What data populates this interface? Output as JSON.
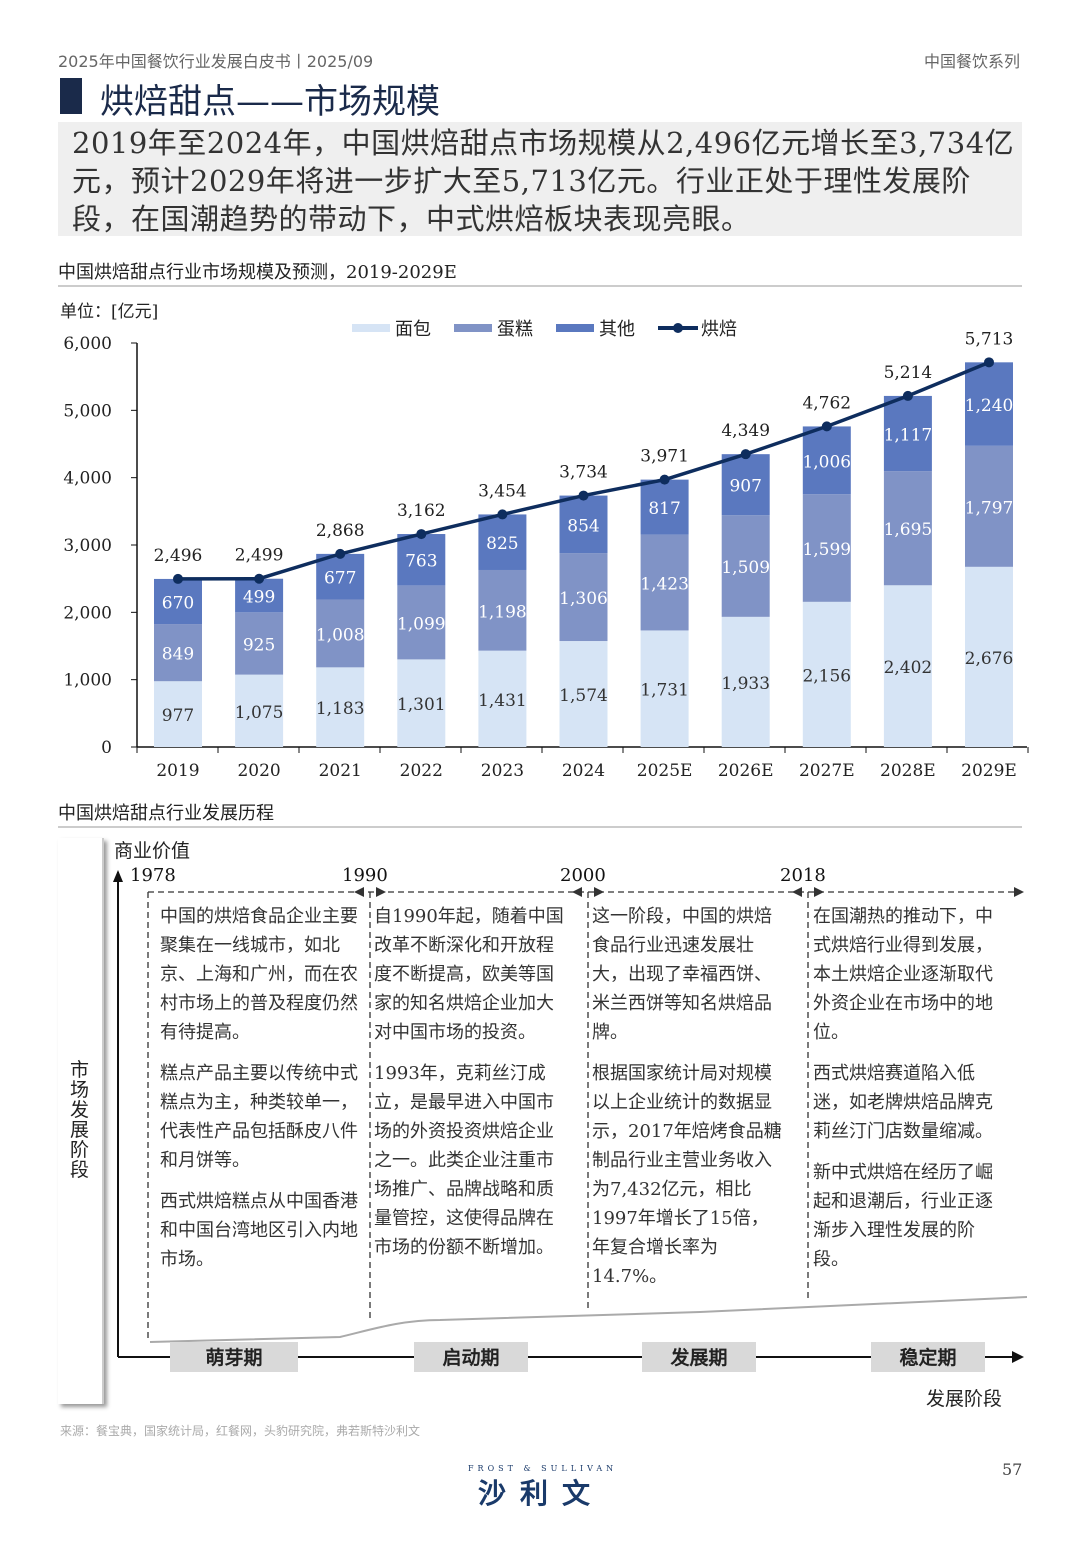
{
  "header": {
    "left": "2025年中国餐饮行业发展白皮书丨2025/09",
    "right": "中国餐饮系列"
  },
  "title": "烘焙甜点——市场规模",
  "summary": "2019年至2024年，中国烘焙甜点市场规模从2,496亿元增长至3,734亿元，预计2029年将进一步扩大至5,713亿元。行业正处于理性发展阶段，在国潮趋势的带动下，中式烘焙板块表现亮眼。",
  "chart_section_title": "中国烘焙甜点行业市场规模及预测，2019-2029E",
  "chart_data": {
    "type": "bar",
    "stacked": true,
    "unit_label": "单位：[亿元]",
    "categories": [
      "2019",
      "2020",
      "2021",
      "2022",
      "2023",
      "2024",
      "2025E",
      "2026E",
      "2027E",
      "2028E",
      "2029E"
    ],
    "yticks": [
      "0",
      "1,000",
      "2,000",
      "3,000",
      "4,000",
      "5,000",
      "6,000"
    ],
    "ylim": [
      0,
      6000
    ],
    "legend_position": "top",
    "series": [
      {
        "name": "面包",
        "color": "#d6e4f5",
        "values": [
          977,
          1075,
          1183,
          1301,
          1431,
          1574,
          1731,
          1933,
          2156,
          2402,
          2676
        ],
        "labels": [
          "977",
          "1,075",
          "1,183",
          "1,301",
          "1,431",
          "1,574",
          "1,731",
          "1,933",
          "2,156",
          "2,402",
          "2,676"
        ]
      },
      {
        "name": "蛋糕",
        "color": "#8093c6",
        "values": [
          849,
          925,
          1008,
          1099,
          1198,
          1306,
          1423,
          1509,
          1599,
          1695,
          1797
        ],
        "labels": [
          "849",
          "925",
          "1,008",
          "1,099",
          "1,198",
          "1,306",
          "1,423",
          "1,509",
          "1,599",
          "1,695",
          "1,797"
        ]
      },
      {
        "name": "其他",
        "color": "#5a78bf",
        "values": [
          670,
          499,
          677,
          763,
          825,
          854,
          817,
          907,
          1006,
          1117,
          1240
        ],
        "labels": [
          "670",
          "499",
          "677",
          "763",
          "825",
          "854",
          "817",
          "907",
          "1,006",
          "1,117",
          "1,240"
        ]
      },
      {
        "name": "烘焙",
        "type": "line",
        "color": "#0e2d5e",
        "values": [
          2496,
          2499,
          2868,
          3162,
          3454,
          3734,
          3971,
          4349,
          4762,
          5214,
          5713
        ],
        "labels": [
          "2,496",
          "2,499",
          "2,868",
          "3,162",
          "3,454",
          "3,734",
          "3,971",
          "4,349",
          "4,762",
          "5,214",
          "5,713"
        ]
      }
    ]
  },
  "timeline_section_title": "中国烘焙甜点行业发展历程",
  "timeline": {
    "y_axis_label": "商业价值",
    "side_label": "市场发展阶段",
    "x_axis_label": "发展阶段",
    "years": [
      "1978",
      "1990",
      "2000",
      "2018"
    ],
    "stages": [
      "萌芽期",
      "启动期",
      "发展期",
      "稳定期"
    ],
    "columns": [
      [
        "中国的烘焙食品企业主要聚集在一线城市，如北京、上海和广州，而在农村市场上的普及程度仍然有待提高。",
        "糕点产品主要以传统中式糕点为主，种类较单一，代表性产品包括酥皮八件和月饼等。",
        "西式烘焙糕点从中国香港和中国台湾地区引入内地市场。"
      ],
      [
        "自1990年起，随着中国改革不断深化和开放程度不断提高，欧美等国家的知名烘焙企业加大对中国市场的投资。",
        "1993年，克莉丝汀成立，是最早进入中国市场的外资投资烘焙企业之一。此类企业注重市场推广、品牌战略和质量管控，这使得品牌在市场的份额不断增加。"
      ],
      [
        "这一阶段，中国的烘焙食品行业迅速发展壮大，出现了幸福西饼、米兰西饼等知名烘焙品牌。",
        "根据国家统计局对规模以上企业统计的数据显示，2017年焙烤食品糖制品行业主营业务收入为7,432亿元，相比1997年增长了15倍，年复合增长率为14.7%。"
      ],
      [
        "在国潮热的推动下，中式烘焙行业得到发展，本土烘焙企业逐渐取代外资企业在市场中的地位。",
        "西式烘焙赛道陷入低迷，如老牌烘焙品牌克莉丝汀门店数量缩减。",
        "新中式烘焙在经历了崛起和退潮后，行业正逐渐步入理性发展的阶段。"
      ]
    ]
  },
  "footer": {
    "source": "来源：餐宝典，国家统计局，红餐网，头豹研究院，弗若斯特沙利文",
    "logo_en": "FROST & SULLIVAN",
    "logo_cn": "沙利文",
    "page": "57"
  }
}
